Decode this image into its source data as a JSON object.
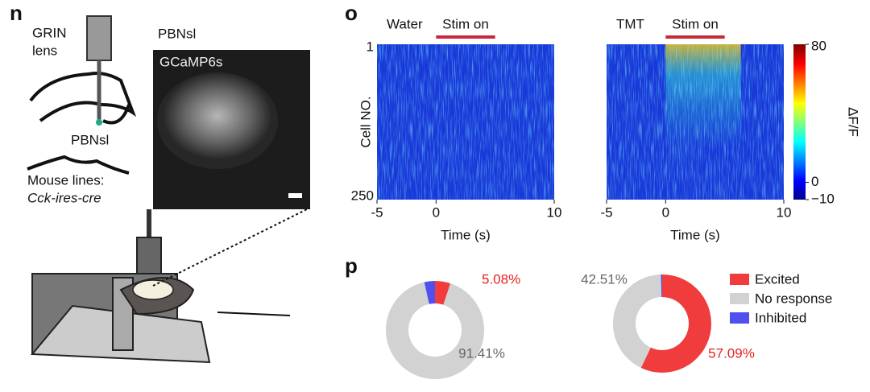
{
  "panels": {
    "n": "n",
    "o": "o",
    "p": "p"
  },
  "illustration": {
    "grin": "GRIN",
    "lens": "lens",
    "region": "PBNsl",
    "lines": "Mouse lines:",
    "line_name": "Cck-ires-cre"
  },
  "micrograph": {
    "title": "PBNsl",
    "indicator": "GCaMP6s"
  },
  "legend": {
    "labels": [
      "Excited",
      "No response",
      "Inhibited"
    ],
    "colors": [
      "#f03c3c",
      "#d2d2d2",
      "#5050ee"
    ]
  },
  "chart_data": [
    {
      "type": "heatmap",
      "title": "Water",
      "annotation": "Stim on",
      "stim": [
        0,
        5
      ],
      "xlabel": "Time (s)",
      "xlim": [
        -5,
        10
      ],
      "xticks": [
        -5,
        0,
        10
      ],
      "ylabel": "Cell NO.",
      "ylim": [
        1,
        250
      ],
      "yticks": [
        1,
        250
      ]
    },
    {
      "type": "heatmap",
      "title": "TMT",
      "annotation": "Stim on",
      "stim": [
        0,
        5
      ],
      "xlabel": "Time (s)",
      "xlim": [
        -5,
        10
      ],
      "xticks": [
        -5,
        0,
        10
      ],
      "colorbar": {
        "label": "ΔF/F",
        "lim": [
          -10,
          80
        ],
        "ticks": [
          80,
          0,
          {
            "value": -10,
            "label": "−10"
          }
        ]
      }
    },
    {
      "type": "donut",
      "values": [
        5.08,
        91.41,
        3.51
      ],
      "value_labels": [
        "5.08%",
        "91.41%",
        null
      ]
    },
    {
      "type": "donut",
      "values": [
        57.09,
        42.51,
        0.4
      ],
      "value_labels": [
        "57.09%",
        "42.51%",
        null
      ]
    }
  ]
}
